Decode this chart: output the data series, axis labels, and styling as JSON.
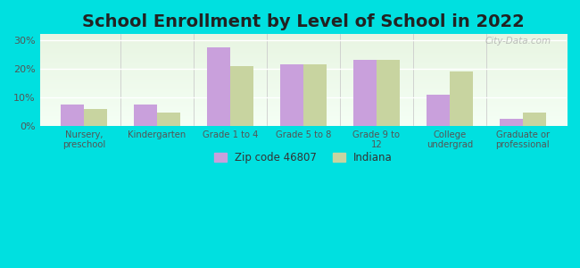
{
  "title": "School Enrollment by Level of School in 2022",
  "categories": [
    "Nursery,\npreschool",
    "Kindergarten",
    "Grade 1 to 4",
    "Grade 5 to 8",
    "Grade 9 to\n12",
    "College\nundergrad",
    "Graduate or\nprofessional"
  ],
  "zip_values": [
    7.5,
    7.5,
    27.5,
    21.5,
    23.0,
    11.0,
    2.5
  ],
  "indiana_values": [
    6.0,
    4.5,
    21.0,
    21.5,
    23.0,
    19.0,
    4.5
  ],
  "zip_color": "#c9a0dc",
  "indiana_color": "#c8d4a0",
  "background_outer": "#00e0e0",
  "background_inner_top": "#e8f5e2",
  "background_inner_bottom": "#f5fff5",
  "ylabel_ticks": [
    "0%",
    "10%",
    "20%",
    "30%"
  ],
  "ytick_values": [
    0,
    10,
    20,
    30
  ],
  "ylim": [
    0,
    32
  ],
  "legend_zip_label": "Zip code 46807",
  "legend_indiana_label": "Indiana",
  "title_fontsize": 14,
  "watermark": "City-Data.com"
}
